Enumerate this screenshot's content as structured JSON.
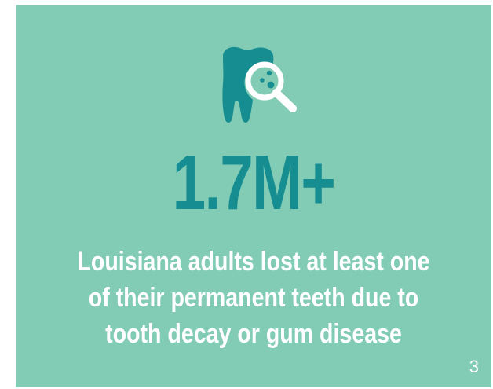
{
  "infographic": {
    "icon": "tooth-magnifier-icon",
    "statistic": "1.7M+",
    "description_lines": [
      "Louisiana adults lost at least one",
      "of their permanent teeth due to",
      "tooth decay or gum disease"
    ],
    "page_number": "3"
  },
  "colors": {
    "background": "#82cbb5",
    "accent": "#158d91",
    "text": "#ffffff"
  }
}
